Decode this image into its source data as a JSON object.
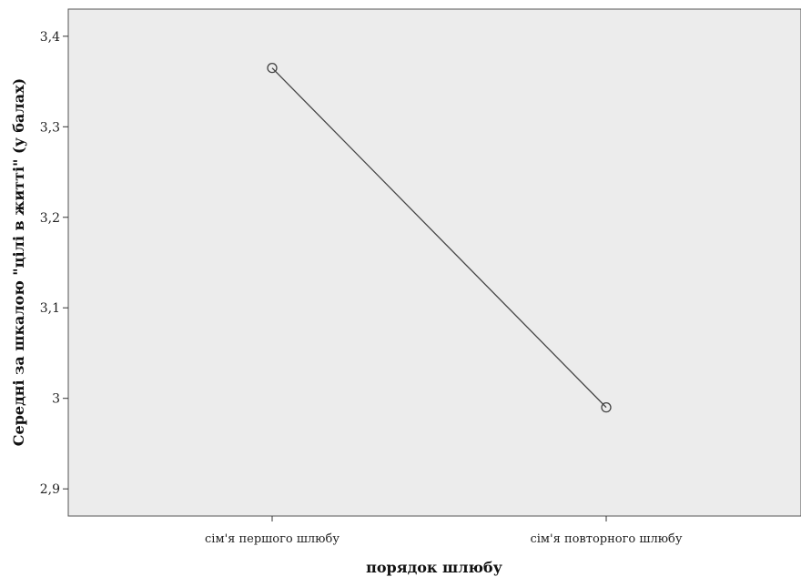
{
  "chart_data": {
    "type": "line",
    "categories": [
      "сім'я першого шлюбу",
      "сім'я повторного шлюбу"
    ],
    "series": [
      {
        "values": [
          3.365,
          2.99
        ]
      }
    ],
    "xlabel": "порядок шлюбу",
    "ylabel": "Середні за шкалою \"цілі в житті\" (у балах)",
    "ylim": [
      2.87,
      3.43
    ],
    "yticks": [
      2.9,
      3.0,
      3.1,
      3.2,
      3.3,
      3.4
    ],
    "ytick_labels": [
      "2,9",
      "3",
      "3,1",
      "3,2",
      "3,3",
      "3,4"
    ],
    "grid": false,
    "plot_background": "#ececec",
    "line_color": "#444444",
    "marker": "open-circle"
  }
}
